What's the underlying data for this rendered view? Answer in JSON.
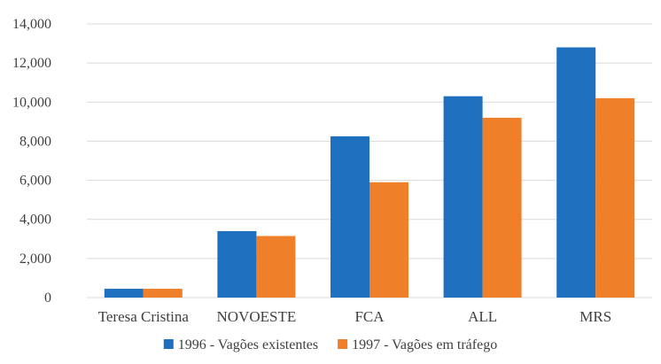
{
  "chart_data": {
    "type": "bar",
    "title": "",
    "xlabel": "",
    "ylabel": "",
    "categories": [
      "Teresa Cristina",
      "NOVOESTE",
      "FCA",
      "ALL",
      "MRS"
    ],
    "series": [
      {
        "name": "1996 - Vagões existentes",
        "color": "#1f6fbf",
        "values": [
          450,
          3400,
          8250,
          10300,
          12800
        ]
      },
      {
        "name": "1997 - Vagões em tráfego",
        "color": "#f07f2a",
        "values": [
          450,
          3150,
          5900,
          9200,
          10200
        ]
      }
    ],
    "ylim": [
      0,
      14000
    ],
    "yticks": [
      "0",
      "2,000",
      "4,000",
      "6,000",
      "8,000",
      "10,000",
      "12,000",
      "14,000"
    ],
    "grid": true,
    "legend_position": "bottom"
  }
}
